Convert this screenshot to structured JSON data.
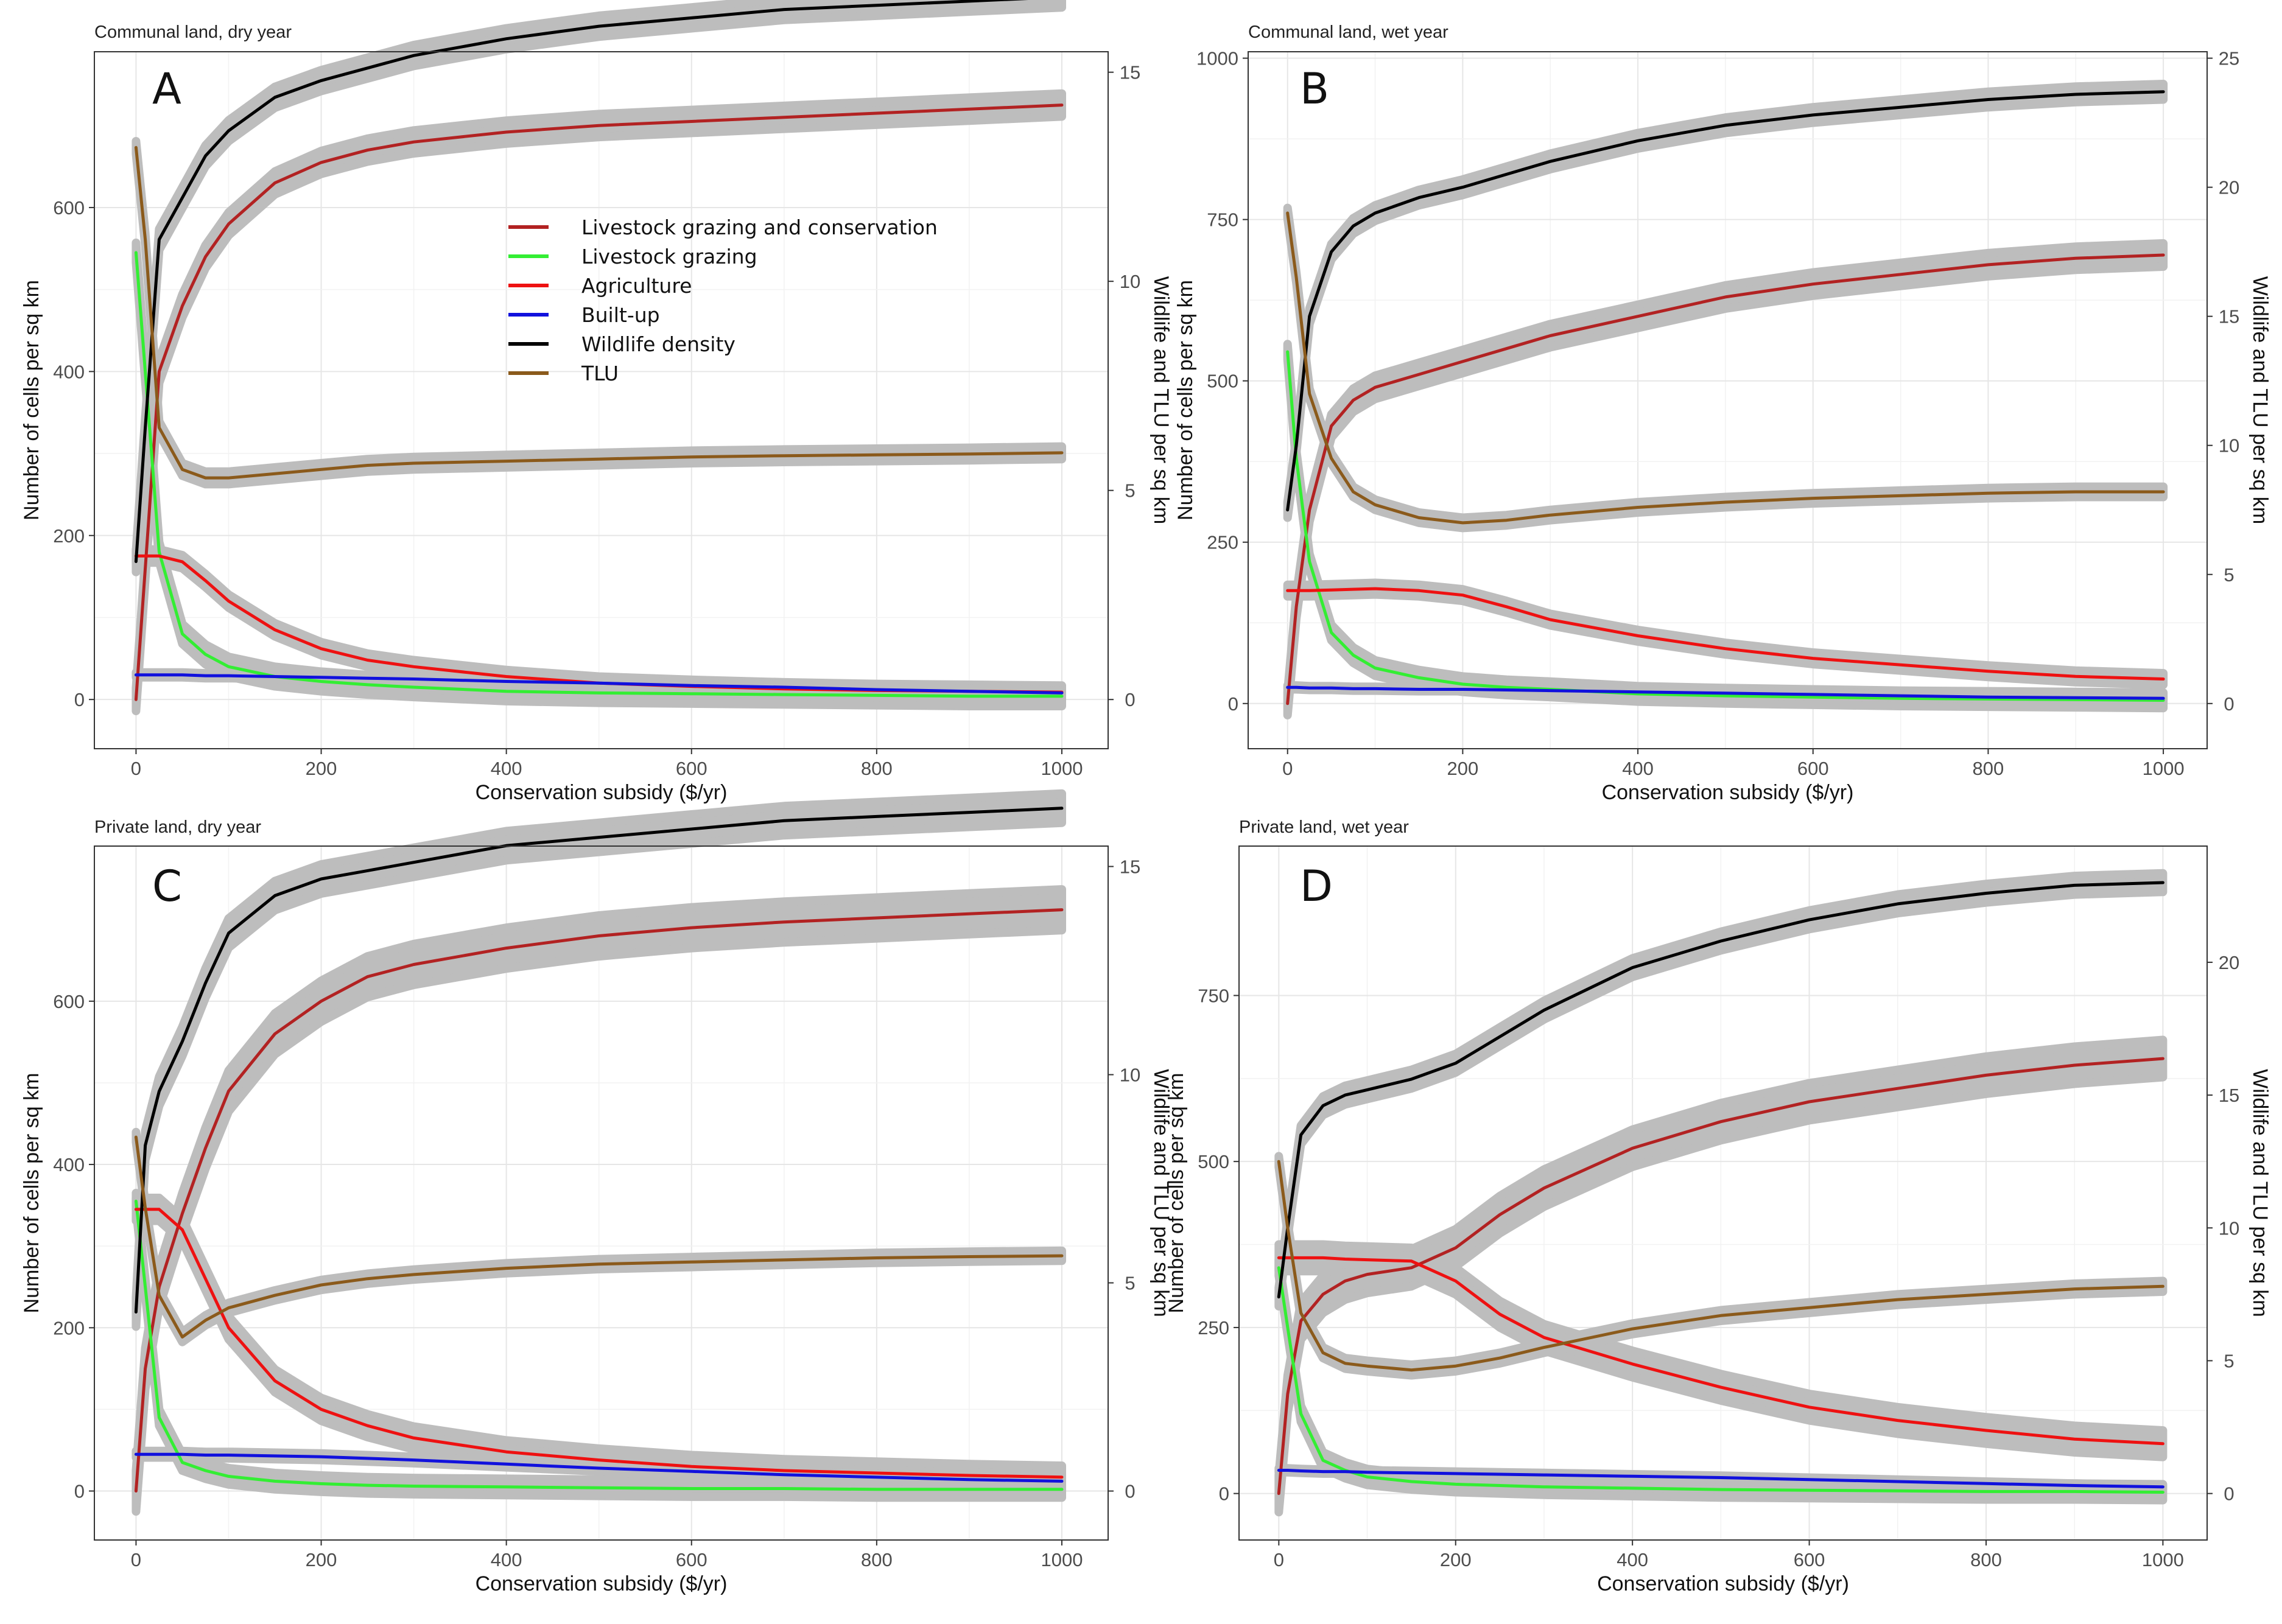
{
  "figure": {
    "legend": [
      {
        "key": "lgc",
        "label": "Livestock grazing and conservation",
        "color": "#b22222"
      },
      {
        "key": "lg",
        "label": "Livestock grazing",
        "color": "#33ee33"
      },
      {
        "key": "ag",
        "label": "Agriculture",
        "color": "#ee1111"
      },
      {
        "key": "bu",
        "label": "Built-up",
        "color": "#1111dd"
      },
      {
        "key": "wd",
        "label": "Wildlife density",
        "color": "#000000"
      },
      {
        "key": "tlu",
        "label": "TLU",
        "color": "#8b5a1b"
      }
    ],
    "ribbon_color": "#bdbdbd"
  },
  "chart_data": [
    {
      "id": "A",
      "label": "A",
      "type": "line",
      "title": "Communal land, dry year",
      "xlabel": "Conservation subsidy ($/yr)",
      "ylabel": "Number of cells per sq km",
      "y2label": "Wildlife and TLU per sq km",
      "xlim": [
        -45,
        1050
      ],
      "ylim": [
        -60,
        790
      ],
      "y2lim": [
        -1.176,
        15.49
      ],
      "xticks": [
        0,
        200,
        400,
        600,
        800,
        1000
      ],
      "yticks": [
        0,
        200,
        400,
        600
      ],
      "y2ticks": [
        0,
        5,
        10,
        15
      ],
      "x": [
        0,
        10,
        25,
        50,
        75,
        100,
        150,
        200,
        250,
        300,
        400,
        500,
        600,
        700,
        800,
        900,
        1000
      ],
      "series": [
        {
          "key": "lgc",
          "axis": "left",
          "values": [
            0,
            160,
            400,
            480,
            540,
            580,
            630,
            655,
            670,
            680,
            692,
            700,
            705,
            710,
            715,
            720,
            725
          ],
          "ribbon": 14
        },
        {
          "key": "lg",
          "axis": "left",
          "values": [
            545,
            400,
            180,
            80,
            55,
            40,
            28,
            22,
            18,
            15,
            10,
            8,
            7,
            6,
            5,
            4,
            4
          ],
          "ribbon": 12
        },
        {
          "key": "ag",
          "axis": "left",
          "values": [
            175,
            175,
            175,
            168,
            145,
            120,
            85,
            62,
            48,
            40,
            28,
            20,
            16,
            13,
            11,
            10,
            9
          ],
          "ribbon": 8
        },
        {
          "key": "bu",
          "axis": "left",
          "values": [
            30,
            30,
            30,
            30,
            29,
            29,
            28,
            27,
            26,
            25,
            22,
            20,
            17,
            15,
            12,
            10,
            8
          ],
          "ribbon": 3
        },
        {
          "key": "wd",
          "axis": "right",
          "values": [
            3.3,
            6.5,
            11.0,
            12.0,
            13.0,
            13.6,
            14.4,
            14.8,
            15.1,
            15.4,
            15.8,
            16.1,
            16.3,
            16.5,
            16.6,
            16.7,
            16.8
          ],
          "ribbon": 0.25
        },
        {
          "key": "tlu",
          "axis": "right",
          "values": [
            13.2,
            11.0,
            6.5,
            5.5,
            5.3,
            5.3,
            5.4,
            5.5,
            5.6,
            5.65,
            5.7,
            5.75,
            5.8,
            5.83,
            5.85,
            5.87,
            5.9
          ],
          "ribbon": 0.15
        }
      ]
    },
    {
      "id": "B",
      "label": "B",
      "type": "line",
      "title": "Communal land, wet year",
      "xlabel": "Conservation subsidy ($/yr)",
      "ylabel": "Number of cells per sq km",
      "y2label": "Wildlife and TLU per sq km",
      "xlim": [
        -45,
        1050
      ],
      "ylim": [
        -70,
        1010
      ],
      "y2lim": [
        -1.75,
        25.25
      ],
      "xticks": [
        0,
        200,
        400,
        600,
        800,
        1000
      ],
      "yticks": [
        0,
        250,
        500,
        750,
        1000
      ],
      "y2ticks": [
        0,
        5,
        10,
        15,
        20,
        25
      ],
      "x": [
        0,
        10,
        25,
        50,
        75,
        100,
        150,
        200,
        250,
        300,
        400,
        500,
        600,
        700,
        800,
        900,
        1000
      ],
      "series": [
        {
          "key": "lgc",
          "axis": "left",
          "values": [
            0,
            150,
            300,
            430,
            470,
            490,
            510,
            530,
            550,
            570,
            600,
            630,
            650,
            665,
            680,
            690,
            695
          ],
          "ribbon": 18
        },
        {
          "key": "lg",
          "axis": "left",
          "values": [
            545,
            380,
            220,
            110,
            75,
            55,
            40,
            30,
            25,
            22,
            15,
            12,
            10,
            8,
            7,
            6,
            5
          ],
          "ribbon": 12
        },
        {
          "key": "ag",
          "axis": "left",
          "values": [
            175,
            175,
            175,
            176,
            177,
            178,
            175,
            168,
            150,
            130,
            105,
            85,
            70,
            60,
            50,
            42,
            38
          ],
          "ribbon": 9
        },
        {
          "key": "bu",
          "axis": "left",
          "values": [
            25,
            25,
            24,
            24,
            23,
            23,
            22,
            22,
            21,
            20,
            18,
            16,
            14,
            12,
            10,
            9,
            8
          ],
          "ribbon": 3
        },
        {
          "key": "wd",
          "axis": "right",
          "values": [
            7.5,
            10.0,
            15.0,
            17.5,
            18.5,
            19.0,
            19.6,
            20.0,
            20.5,
            21.0,
            21.8,
            22.4,
            22.8,
            23.1,
            23.4,
            23.6,
            23.7
          ],
          "ribbon": 0.3
        },
        {
          "key": "tlu",
          "axis": "right",
          "values": [
            19.0,
            16.5,
            12.0,
            9.5,
            8.2,
            7.7,
            7.2,
            7.0,
            7.1,
            7.3,
            7.6,
            7.8,
            7.95,
            8.05,
            8.15,
            8.2,
            8.2
          ],
          "ribbon": 0.2
        }
      ]
    },
    {
      "id": "C",
      "label": "C",
      "type": "line",
      "title": "Private land, dry year",
      "xlabel": "Conservation subsidy ($/yr)",
      "ylabel": "Number of cells per sq km",
      "y2label": "Wildlife and TLU per sq km",
      "xlim": [
        -45,
        1050
      ],
      "ylim": [
        -60,
        790
      ],
      "y2lim": [
        -1.176,
        15.49
      ],
      "xticks": [
        0,
        200,
        400,
        600,
        800,
        1000
      ],
      "yticks": [
        0,
        200,
        400,
        600
      ],
      "y2ticks": [
        0,
        5,
        10,
        15
      ],
      "x": [
        0,
        10,
        25,
        50,
        75,
        100,
        150,
        200,
        250,
        300,
        400,
        500,
        600,
        700,
        800,
        900,
        1000
      ],
      "series": [
        {
          "key": "lgc",
          "axis": "left",
          "values": [
            0,
            150,
            250,
            340,
            420,
            490,
            560,
            600,
            630,
            645,
            665,
            680,
            690,
            697,
            702,
            707,
            712
          ],
          "ribbon": 25
        },
        {
          "key": "lg",
          "axis": "left",
          "values": [
            355,
            250,
            90,
            35,
            25,
            18,
            12,
            9,
            7,
            6,
            5,
            4,
            3,
            3,
            2,
            2,
            2
          ],
          "ribbon": 10
        },
        {
          "key": "ag",
          "axis": "left",
          "values": [
            345,
            345,
            345,
            320,
            260,
            200,
            135,
            100,
            80,
            65,
            48,
            38,
            30,
            25,
            22,
            19,
            17
          ],
          "ribbon": 14
        },
        {
          "key": "bu",
          "axis": "left",
          "values": [
            45,
            45,
            45,
            45,
            44,
            44,
            43,
            42,
            40,
            38,
            33,
            28,
            24,
            20,
            17,
            14,
            12
          ],
          "ribbon": 4
        },
        {
          "key": "wd",
          "axis": "right",
          "values": [
            4.3,
            8.3,
            9.6,
            10.8,
            12.2,
            13.4,
            14.3,
            14.7,
            14.9,
            15.1,
            15.5,
            15.7,
            15.9,
            16.1,
            16.2,
            16.3,
            16.4
          ],
          "ribbon": 0.35
        },
        {
          "key": "tlu",
          "axis": "right",
          "values": [
            8.5,
            6.8,
            4.7,
            3.7,
            4.1,
            4.4,
            4.7,
            4.95,
            5.1,
            5.2,
            5.35,
            5.45,
            5.5,
            5.55,
            5.6,
            5.63,
            5.65
          ],
          "ribbon": 0.12
        }
      ]
    },
    {
      "id": "D",
      "label": "D",
      "type": "line",
      "title": "Private land, wet year",
      "xlabel": "Conservation subsidy ($/yr)",
      "ylabel": "Number of cells per sq km",
      "y2label": "Wildlife and TLU per sq km",
      "xlim": [
        -45,
        1050
      ],
      "ylim": [
        -70,
        975
      ],
      "y2lim": [
        -1.75,
        24.375
      ],
      "xticks": [
        0,
        200,
        400,
        600,
        800,
        1000
      ],
      "yticks": [
        0,
        250,
        500,
        750
      ],
      "y2ticks": [
        0,
        5,
        10,
        15,
        20
      ],
      "x": [
        0,
        10,
        25,
        50,
        75,
        100,
        150,
        200,
        250,
        300,
        400,
        500,
        600,
        700,
        800,
        900,
        1000
      ],
      "series": [
        {
          "key": "lgc",
          "axis": "left",
          "values": [
            0,
            150,
            260,
            300,
            320,
            330,
            340,
            370,
            420,
            460,
            520,
            560,
            590,
            610,
            630,
            645,
            655
          ],
          "ribbon": 28
        },
        {
          "key": "lg",
          "axis": "left",
          "values": [
            340,
            250,
            120,
            50,
            35,
            25,
            18,
            14,
            12,
            10,
            8,
            6,
            5,
            4,
            3,
            3,
            2
          ],
          "ribbon": 12
        },
        {
          "key": "ag",
          "axis": "left",
          "values": [
            355,
            355,
            355,
            355,
            353,
            352,
            350,
            320,
            270,
            235,
            195,
            160,
            130,
            110,
            95,
            82,
            75
          ],
          "ribbon": 20
        },
        {
          "key": "bu",
          "axis": "left",
          "values": [
            35,
            35,
            34,
            33,
            33,
            32,
            31,
            30,
            29,
            28,
            26,
            24,
            21,
            18,
            15,
            12,
            10
          ],
          "ribbon": 3
        },
        {
          "key": "wd",
          "axis": "right",
          "values": [
            7.4,
            10.0,
            13.5,
            14.6,
            15.0,
            15.2,
            15.6,
            16.2,
            17.2,
            18.2,
            19.8,
            20.8,
            21.6,
            22.2,
            22.6,
            22.9,
            23.0
          ],
          "ribbon": 0.35
        },
        {
          "key": "tlu",
          "axis": "right",
          "values": [
            12.5,
            10.0,
            6.8,
            5.3,
            4.9,
            4.8,
            4.65,
            4.8,
            5.1,
            5.5,
            6.2,
            6.7,
            7.0,
            7.3,
            7.5,
            7.7,
            7.8
          ],
          "ribbon": 0.2
        }
      ]
    }
  ]
}
